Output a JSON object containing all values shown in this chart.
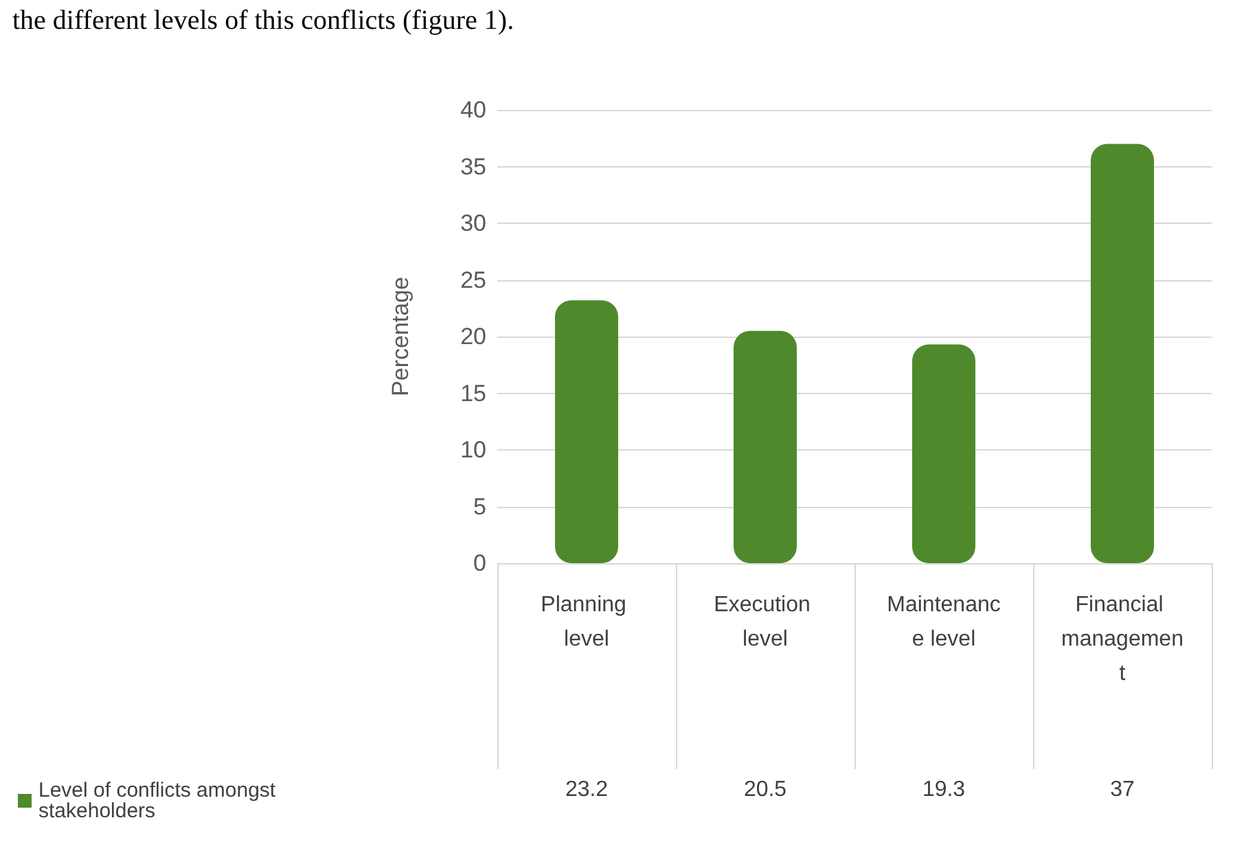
{
  "chart_data": {
    "type": "bar",
    "annotations": [
      "the different levels of this conflicts (figure 1)."
    ],
    "categories": [
      "Planning level",
      "Execution level",
      "Maintenance level",
      "Financial management"
    ],
    "series": [
      {
        "name": "Level of conflicts amongst stakeholders",
        "color": "#4e8a2c",
        "values": [
          23.2,
          20.5,
          19.3,
          37
        ]
      }
    ],
    "ylabel": "Percentage",
    "ylim": [
      0,
      40
    ],
    "yticks": [
      0,
      5,
      10,
      15,
      20,
      25,
      30,
      35,
      40
    ],
    "grid": "y",
    "legend": "bottom left",
    "data_labels": true
  }
}
